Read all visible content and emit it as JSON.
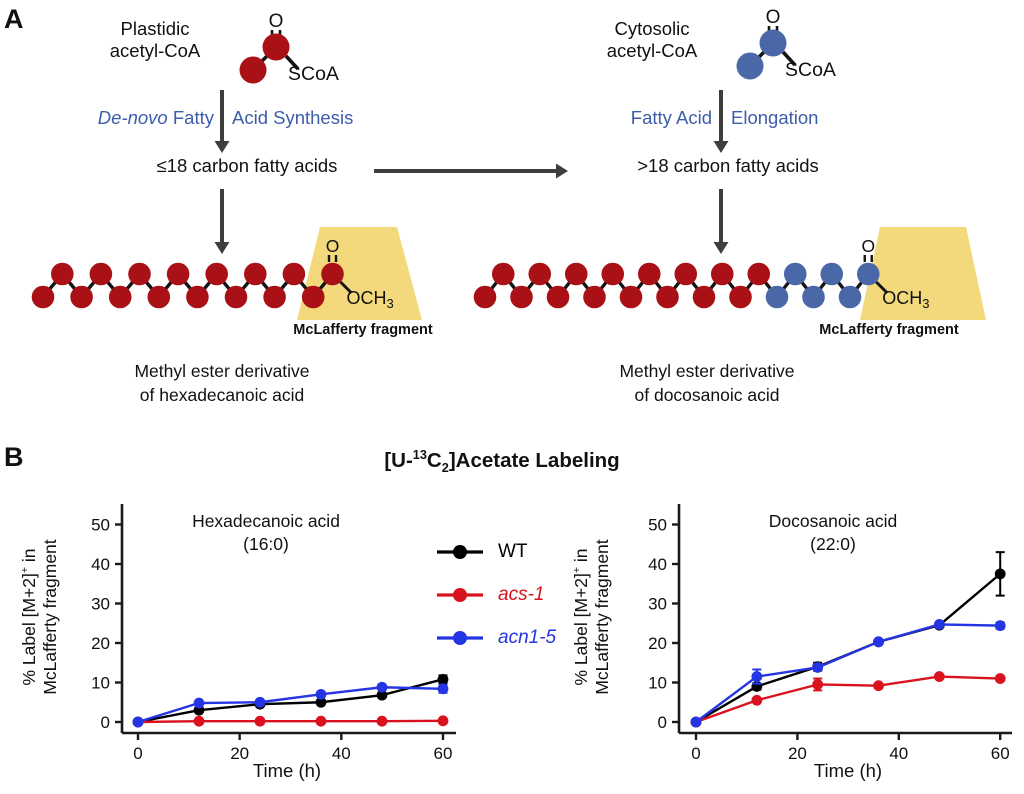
{
  "panelA": {
    "label": "A",
    "plastidic": {
      "name_line1": "Plastidic",
      "name_line2": "acetyl-CoA",
      "molecule": {
        "oxygen": "O",
        "thioester": "SCoA",
        "color": "#a91117"
      },
      "pathway_italic": "De-novo",
      "pathway_before_arrow": "Fatty",
      "pathway_after_arrow": "Acid Synthesis",
      "product": "≤18 carbon fatty acids",
      "fragment_label": "McLafferty fragment",
      "ester_line1": "Methyl ester derivative",
      "ester_line2": "of hexadecanoic acid"
    },
    "cytosolic": {
      "name_line1": "Cytosolic",
      "name_line2": "acetyl-CoA",
      "molecule": {
        "oxygen": "O",
        "thioester": "SCoA",
        "color": "#4a67a8"
      },
      "pathway_italic": "",
      "pathway_before_arrow": "Fatty Acid",
      "pathway_after_arrow": "Elongation",
      "product": ">18 carbon fatty acids",
      "fragment_label": "McLafferty fragment",
      "ester_line1": "Methyl ester derivative",
      "ester_line2": "of docosanoic acid"
    },
    "chains": [
      {
        "carbons": 16,
        "blue_from": 16,
        "oxygen": "O",
        "ester_group": "OCH",
        "ester_sub": "3"
      },
      {
        "carbons": 22,
        "blue_from": 16,
        "oxygen": "O",
        "ester_group": "OCH",
        "ester_sub": "3"
      }
    ],
    "colors": {
      "red_carbon": "#a91117",
      "blue_carbon": "#4a67a8",
      "arrow": "#3e3e3e",
      "pathway_text": "#3d5dab",
      "fragment_highlight": "#f3d97c",
      "bond": "#141414"
    }
  },
  "panelB": {
    "label": "B",
    "title_parts": {
      "p1": "[U-",
      "sup": "13",
      "p2": "C",
      "sub": "2",
      "p3": "]Acetate Labeling"
    },
    "ylabel": {
      "line1_main": "% Label [M+2]",
      "line1_sup": "+",
      "line1_end": " in",
      "line2": "McLafferty fragment"
    },
    "legend": [
      {
        "label": "WT",
        "color": "#000000",
        "italic": false
      },
      {
        "label": "acs-1",
        "color": "#d8131d",
        "italic": true
      },
      {
        "label": "acn1-5",
        "color": "#2435e3",
        "italic": true
      }
    ]
  },
  "chart_data": [
    {
      "type": "line",
      "title": "Hexadecanoic acid",
      "subtitle": "(16:0)",
      "xlabel": "Time (h)",
      "ylabel": "% Label [M+2]+ in McLafferty fragment",
      "x": [
        0,
        12,
        24,
        36,
        48,
        60
      ],
      "xticks": [
        0,
        20,
        40,
        60
      ],
      "yticks": [
        0,
        10,
        20,
        30,
        40,
        50
      ],
      "ylim": [
        0,
        52
      ],
      "grid": false,
      "legend_position": "right-of-plot",
      "series": [
        {
          "name": "WT",
          "color": "#000000",
          "values": [
            0,
            3,
            4.5,
            5,
            6.8,
            10.8
          ],
          "errors": [
            0,
            0,
            0,
            0,
            0,
            1
          ]
        },
        {
          "name": "acs-1",
          "color": "#d8131d",
          "values": [
            0,
            0.2,
            0.2,
            0.2,
            0.2,
            0.3
          ],
          "errors": [
            0,
            0,
            0,
            0,
            0,
            0
          ]
        },
        {
          "name": "acn1-5",
          "color": "#2435e3",
          "values": [
            0,
            4.8,
            5,
            7,
            8.8,
            8.4
          ],
          "errors": [
            0,
            0,
            0,
            0,
            0.6,
            1
          ]
        }
      ]
    },
    {
      "type": "line",
      "title": "Docosanoic acid",
      "subtitle": "(22:0)",
      "xlabel": "Time (h)",
      "ylabel": "% Label [M+2]+ in McLafferty fragment",
      "x": [
        0,
        12,
        24,
        36,
        48,
        60
      ],
      "xticks": [
        0,
        20,
        40,
        60
      ],
      "yticks": [
        0,
        10,
        20,
        30,
        40,
        50
      ],
      "ylim": [
        0,
        52
      ],
      "grid": false,
      "series": [
        {
          "name": "WT",
          "color": "#000000",
          "values": [
            0,
            9,
            14,
            20.3,
            24.5,
            37.5
          ],
          "errors": [
            0,
            0.8,
            1,
            0,
            0,
            5.5
          ]
        },
        {
          "name": "acs-1",
          "color": "#d8131d",
          "values": [
            0,
            5.5,
            9.5,
            9.2,
            11.5,
            11
          ],
          "errors": [
            0,
            0.5,
            1.5,
            0.5,
            0.5,
            0.5
          ]
        },
        {
          "name": "acn1-5",
          "color": "#2435e3",
          "values": [
            0,
            11.5,
            13.8,
            20.3,
            24.7,
            24.4
          ],
          "errors": [
            0,
            1.8,
            0.8,
            0,
            0,
            0.8
          ]
        }
      ]
    }
  ]
}
